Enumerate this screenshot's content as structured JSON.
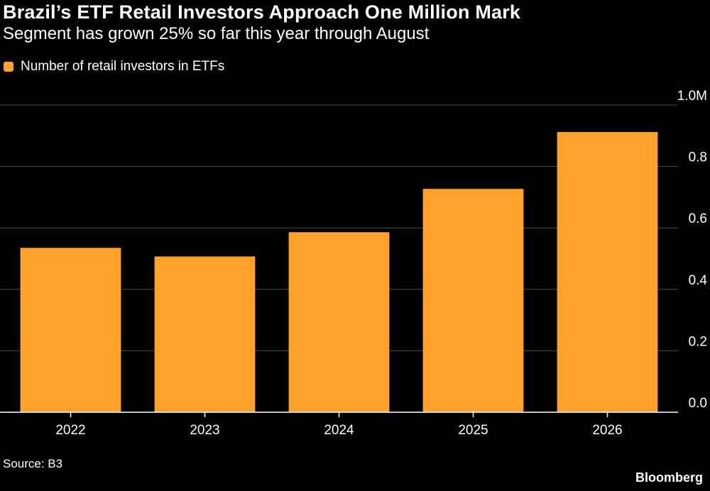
{
  "header": {
    "title": "Brazil’s ETF Retail Investors Approach One Million Mark",
    "subtitle": "Segment has grown 25% so far this year through August"
  },
  "legend": {
    "label": "Number of retail investors in ETFs",
    "color": "#FFA12B"
  },
  "footer": {
    "source": "Source: B3",
    "brand": "Bloomberg"
  },
  "colors": {
    "background": "#000000",
    "bar": "#FFA12B",
    "grid": "#4d4d4d",
    "axis": "#ffffff",
    "text": "#ffffff"
  },
  "chart_data": {
    "type": "bar",
    "title": "Brazil’s ETF Retail Investors Approach One Million Mark",
    "subtitle": "Segment has grown 25% so far this year through August",
    "categories": [
      "2022",
      "2023",
      "2024",
      "2025",
      "2026"
    ],
    "series": [
      {
        "name": "Number of retail investors in ETFs",
        "values": [
          0.535,
          0.507,
          0.586,
          0.727,
          0.912
        ]
      }
    ],
    "ylim": [
      0,
      1.0
    ],
    "yticks": [
      0,
      0.2,
      0.4,
      0.6,
      0.8,
      1.0
    ],
    "ytick_labels": [
      "0.0",
      "0.2",
      "0.4",
      "0.6",
      "0.8",
      "1.0M"
    ],
    "y_axis_position": "right",
    "grid": true,
    "legend_position": "top-left",
    "xlabel": "",
    "ylabel": ""
  }
}
